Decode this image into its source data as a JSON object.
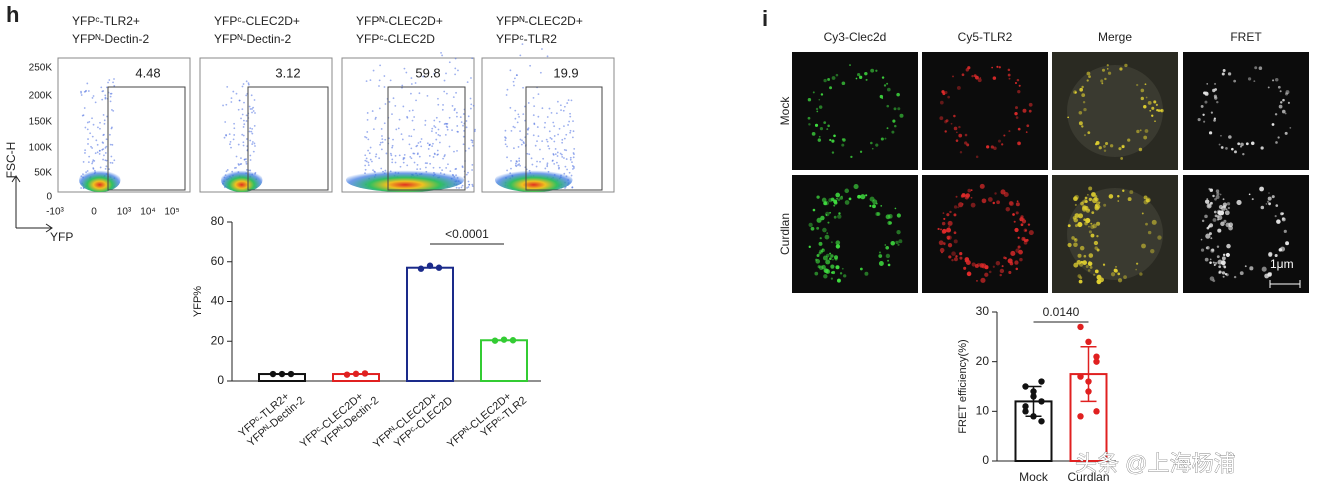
{
  "panel_h": {
    "label": "h",
    "flow": {
      "headers": [
        [
          "YFPᶜ-TLR2+",
          "YFPᴺ-Dectin-2"
        ],
        [
          "YFPᶜ-CLEC2D+",
          "YFPᴺ-Dectin-2"
        ],
        [
          "YFPᴺ-CLEC2D+",
          "YFPᶜ-CLEC2D"
        ],
        [
          "YFPᴺ-CLEC2D+",
          "YFPᶜ-TLR2"
        ]
      ],
      "gate_percent": [
        4.48,
        3.12,
        59.8,
        19.9
      ],
      "y_axis_label": "FSC-H",
      "x_axis_label": "YFP",
      "y_tick_labels": [
        "250K",
        "200K",
        "150K",
        "100K",
        "50K",
        "0"
      ],
      "x_tick_labels": [
        "-10³",
        "0",
        "10³",
        "10⁴",
        "10⁵"
      ]
    }
  },
  "panel_i": {
    "label": "i",
    "columns": [
      "Cy3-Clec2d",
      "Cy5-TLR2",
      "Merge",
      "FRET"
    ],
    "column_colors": [
      "#2fb34a",
      "#d42a2a",
      "#e0a800",
      "#9a9a9a"
    ],
    "rows": [
      "Mock",
      "Curdlan"
    ],
    "scale_bar": "1μm"
  },
  "chart_data": [
    {
      "type": "bar",
      "y_label": "YFP%",
      "categories": [
        "YFPᶜ-TLR2+\nYFPᴺ-Dectin-2",
        "YFPᶜ-CLEC2D+\nYFPᴺ-Dectin-2",
        "YFPᴺ-CLEC2D+\nYFPᶜ-CLEC2D",
        "YFPᴺ-CLEC2D+\nYFPᶜ-TLR2"
      ],
      "values": [
        3.5,
        3.5,
        57,
        20.5
      ],
      "points": [
        [
          3.5,
          3.5,
          3.5
        ],
        [
          3.2,
          3.6,
          3.8
        ],
        [
          56.5,
          58,
          57
        ],
        [
          20.3,
          20.8,
          20.5
        ]
      ],
      "colors": [
        "#111111",
        "#e02020",
        "#1a2a8a",
        "#33cc33"
      ],
      "ylim": [
        0,
        80
      ],
      "yticks": [
        0,
        20,
        40,
        60,
        80
      ],
      "significance": "<0.0001"
    },
    {
      "type": "bar",
      "y_label": "FRET efficiency(%)",
      "categories": [
        "Mock",
        "Curdlan"
      ],
      "values": [
        12,
        17.5
      ],
      "errors": [
        3,
        5.5
      ],
      "points": [
        [
          15,
          14,
          12,
          11,
          9,
          8,
          10,
          13,
          16
        ],
        [
          27,
          24,
          20,
          17,
          14,
          10,
          9,
          16,
          21
        ]
      ],
      "colors": [
        "#111111",
        "#e02020"
      ],
      "ylim": [
        0,
        30
      ],
      "yticks": [
        0,
        10,
        20,
        30
      ],
      "significance": "0.0140"
    }
  ],
  "watermark": "头条 @上海杨浦"
}
